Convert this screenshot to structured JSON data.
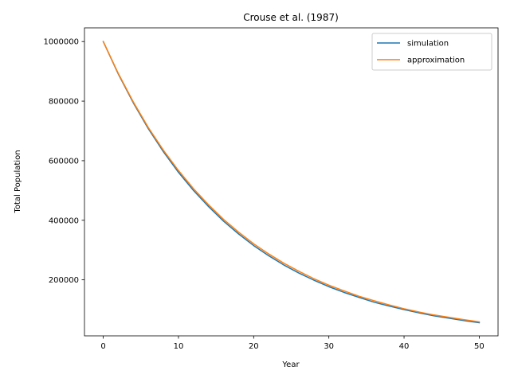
{
  "chart_data": {
    "type": "line",
    "title": "Crouse et al. (1987)",
    "xlabel": "Year",
    "ylabel": "Total Population",
    "xlim": [
      -2.5,
      52.5
    ],
    "ylim": [
      12000,
      1046000
    ],
    "xticks": [
      0,
      10,
      20,
      30,
      40,
      50
    ],
    "yticks": [
      200000,
      400000,
      600000,
      800000,
      1000000
    ],
    "grid": false,
    "legend_position": "top-right",
    "series": [
      {
        "name": "simulation",
        "color": "#1f77b4",
        "x": [
          0,
          2,
          4,
          6,
          8,
          10,
          12,
          14,
          16,
          18,
          20,
          22,
          24,
          26,
          28,
          30,
          32,
          34,
          36,
          38,
          40,
          42,
          44,
          46,
          48,
          50
        ],
        "y": [
          1000000,
          891000,
          794000,
          707000,
          630000,
          561000,
          500000,
          446000,
          397000,
          354000,
          315000,
          281000,
          250000,
          223000,
          199000,
          177000,
          158000,
          141000,
          125000,
          112000,
          100000,
          89000,
          79000,
          71000,
          63000,
          56000
        ]
      },
      {
        "name": "approximation",
        "color": "#ff7f0e",
        "x": [
          0,
          2,
          4,
          6,
          8,
          10,
          12,
          14,
          16,
          18,
          20,
          22,
          24,
          26,
          28,
          30,
          32,
          34,
          36,
          38,
          40,
          42,
          44,
          46,
          48,
          50
        ],
        "y": [
          1000000,
          893000,
          797000,
          711000,
          635000,
          567000,
          506000,
          452000,
          403000,
          360000,
          321000,
          287000,
          256000,
          229000,
          204000,
          182000,
          163000,
          145000,
          130000,
          116000,
          103000,
          92000,
          82000,
          74000,
          66000,
          59000
        ]
      }
    ]
  }
}
